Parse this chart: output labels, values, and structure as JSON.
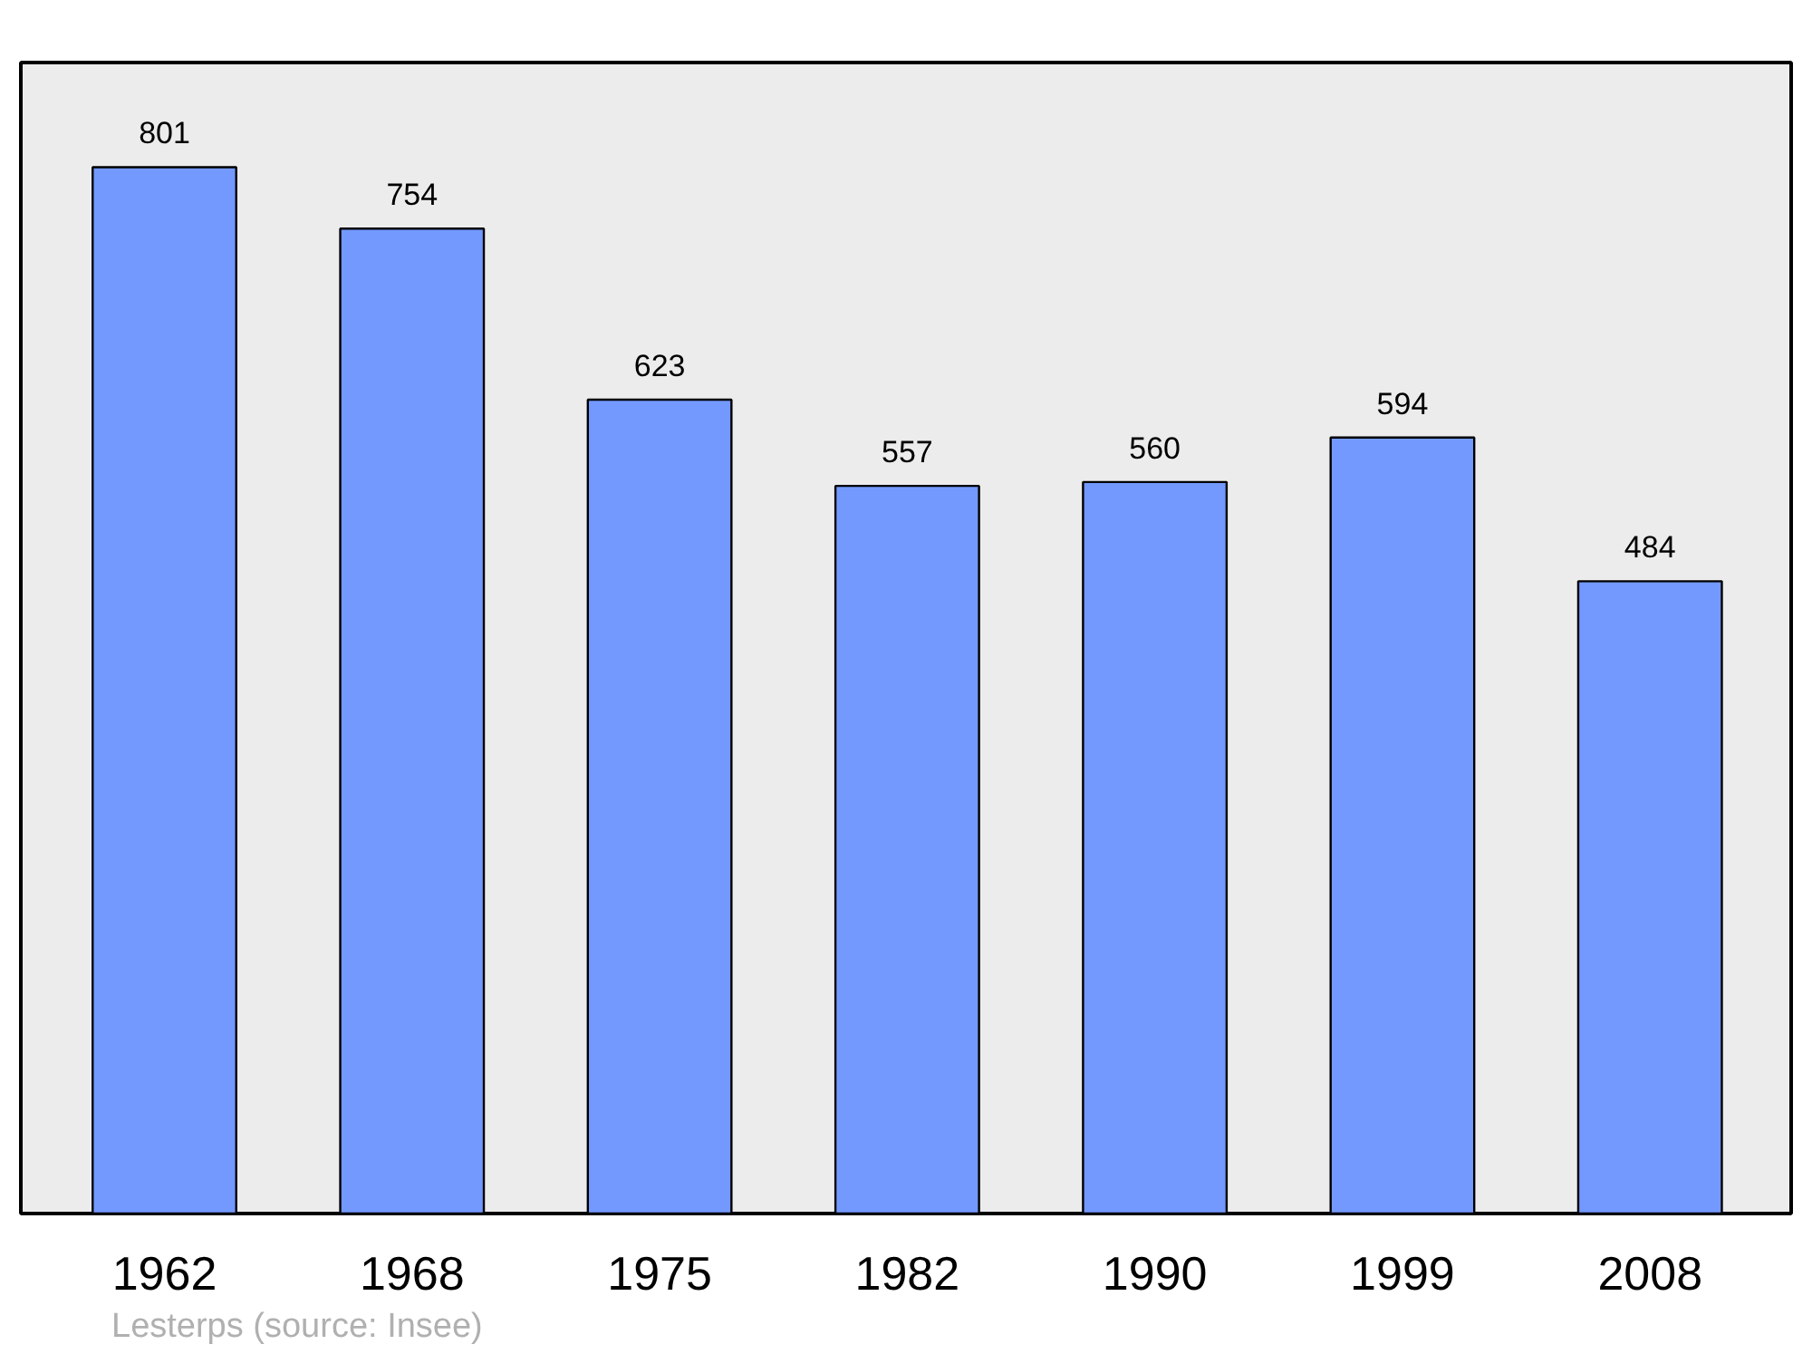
{
  "chart_data": {
    "type": "bar",
    "categories": [
      "1962",
      "1968",
      "1975",
      "1982",
      "1990",
      "1999",
      "2008"
    ],
    "values": [
      801,
      754,
      623,
      557,
      560,
      594,
      484
    ],
    "color": "#7399ff",
    "data_labels": true,
    "tick_labels": "x",
    "annotations": [
      "Lesterps    (source: Insee)"
    ]
  }
}
